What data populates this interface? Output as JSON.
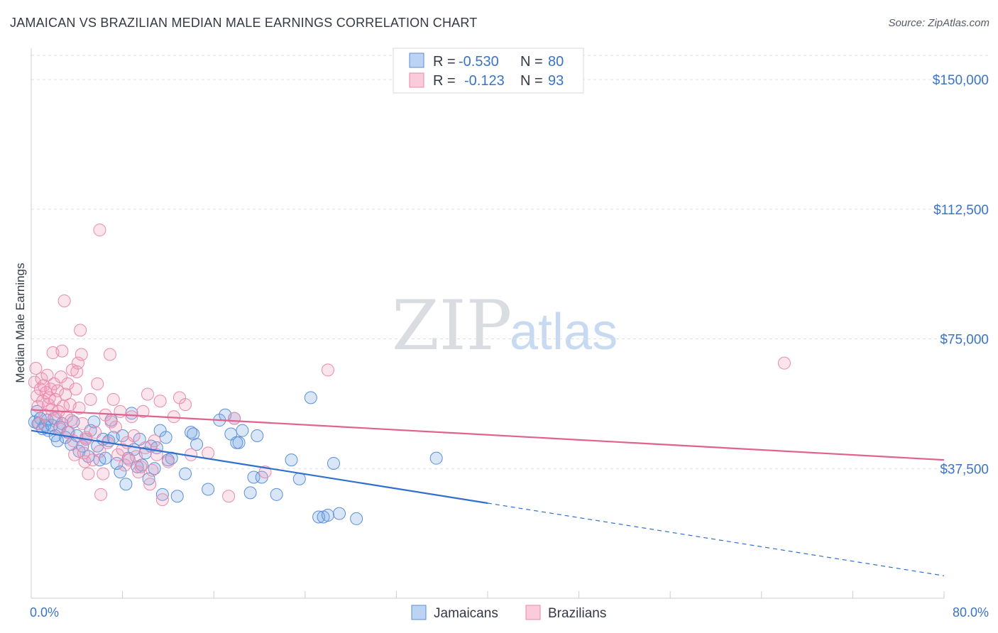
{
  "header": {
    "title": "JAMAICAN VS BRAZILIAN MEDIAN MALE EARNINGS CORRELATION CHART",
    "source": "Source: ZipAtlas.com"
  },
  "watermark": {
    "zip": "ZIP",
    "atlas": "atlas"
  },
  "legend": {
    "r_label": "R =",
    "n_label": "N =",
    "rows": [
      {
        "r": "-0.530",
        "n": "80",
        "color": "#5b8fd6"
      },
      {
        "r": "-0.123",
        "n": "93",
        "color": "#e98aab"
      }
    ]
  },
  "colors": {
    "blue": "#2f6fce",
    "pink": "#e0628f",
    "axis_text": "#3a74c9"
  },
  "chart_data": {
    "type": "scatter",
    "ylabel": "Median Male Earnings",
    "xlim": [
      0,
      80
    ],
    "ylim": [
      0,
      157000
    ],
    "y_ticks": [
      37500,
      75000,
      112500,
      150000
    ],
    "y_tick_labels": [
      "$37,500",
      "$75,000",
      "$112,500",
      "$150,000"
    ],
    "x_tick_labels": [
      "0.0%",
      "80.0%"
    ],
    "grid": "dashed-horizontal",
    "legend_placement": "top-center",
    "series": [
      {
        "name": "Jamaicans",
        "r": -0.53,
        "n": 80,
        "trend": {
          "x0": 0,
          "y0": 48500,
          "x1": 40,
          "y1": 27500,
          "dashed_to_x": 80,
          "dashed_to_y": 6500
        },
        "points": [
          [
            0.3,
            51000
          ],
          [
            0.5,
            54000
          ],
          [
            0.6,
            50500
          ],
          [
            0.8,
            52000
          ],
          [
            1.0,
            49000
          ],
          [
            1.2,
            50000
          ],
          [
            1.4,
            51500
          ],
          [
            1.5,
            48500
          ],
          [
            1.8,
            50000
          ],
          [
            2.0,
            52000
          ],
          [
            2.1,
            47000
          ],
          [
            2.3,
            45500
          ],
          [
            2.5,
            49500
          ],
          [
            2.7,
            50500
          ],
          [
            3.0,
            46500
          ],
          [
            3.2,
            48000
          ],
          [
            3.5,
            44500
          ],
          [
            3.7,
            51000
          ],
          [
            4.0,
            47000
          ],
          [
            4.2,
            42500
          ],
          [
            4.5,
            44000
          ],
          [
            4.8,
            46000
          ],
          [
            5.0,
            41000
          ],
          [
            5.2,
            48500
          ],
          [
            5.5,
            51000
          ],
          [
            5.8,
            44000
          ],
          [
            6.0,
            40000
          ],
          [
            6.3,
            46000
          ],
          [
            6.5,
            40500
          ],
          [
            6.8,
            45500
          ],
          [
            7.0,
            51500
          ],
          [
            7.2,
            46500
          ],
          [
            7.5,
            39000
          ],
          [
            7.8,
            36500
          ],
          [
            8.0,
            47000
          ],
          [
            8.3,
            33000
          ],
          [
            8.5,
            40500
          ],
          [
            8.8,
            53500
          ],
          [
            9.0,
            43000
          ],
          [
            9.3,
            38000
          ],
          [
            9.5,
            46000
          ],
          [
            9.7,
            38500
          ],
          [
            10.0,
            42000
          ],
          [
            10.3,
            34500
          ],
          [
            10.5,
            44000
          ],
          [
            10.8,
            37500
          ],
          [
            11.0,
            43500
          ],
          [
            11.3,
            48500
          ],
          [
            11.5,
            30000
          ],
          [
            11.8,
            46500
          ],
          [
            12.0,
            40000
          ],
          [
            12.3,
            40500
          ],
          [
            12.8,
            29500
          ],
          [
            13.5,
            36000
          ],
          [
            14.0,
            48000
          ],
          [
            14.2,
            47500
          ],
          [
            14.5,
            44500
          ],
          [
            15.5,
            31500
          ],
          [
            16.5,
            51500
          ],
          [
            17.0,
            53000
          ],
          [
            17.5,
            47500
          ],
          [
            17.8,
            52000
          ],
          [
            18.2,
            45000
          ],
          [
            18.5,
            48500
          ],
          [
            19.2,
            30500
          ],
          [
            19.5,
            35000
          ],
          [
            19.8,
            47000
          ],
          [
            20.2,
            35000
          ],
          [
            21.5,
            30000
          ],
          [
            22.8,
            40000
          ],
          [
            23.5,
            34500
          ],
          [
            24.5,
            58000
          ],
          [
            25.2,
            23500
          ],
          [
            25.6,
            23500
          ],
          [
            26.0,
            24000
          ],
          [
            26.5,
            39000
          ],
          [
            27.0,
            24500
          ],
          [
            28.5,
            23000
          ],
          [
            35.5,
            40500
          ],
          [
            18.0,
            45000
          ]
        ]
      },
      {
        "name": "Brazilians",
        "r": -0.123,
        "n": 93,
        "trend": {
          "x0": 0,
          "y0": 54500,
          "x1": 80,
          "y1": 40000
        },
        "points": [
          [
            0.3,
            62500
          ],
          [
            0.4,
            66500
          ],
          [
            0.5,
            58500
          ],
          [
            0.6,
            55500
          ],
          [
            0.7,
            50500
          ],
          [
            0.8,
            60500
          ],
          [
            0.9,
            63500
          ],
          [
            1.0,
            57000
          ],
          [
            1.1,
            61500
          ],
          [
            1.2,
            53000
          ],
          [
            1.3,
            59500
          ],
          [
            1.4,
            64500
          ],
          [
            1.5,
            56000
          ],
          [
            1.6,
            58000
          ],
          [
            1.7,
            60500
          ],
          [
            1.8,
            54500
          ],
          [
            1.9,
            71000
          ],
          [
            2.0,
            62000
          ],
          [
            2.1,
            57500
          ],
          [
            2.2,
            52000
          ],
          [
            2.3,
            60000
          ],
          [
            2.4,
            54000
          ],
          [
            2.5,
            49000
          ],
          [
            2.6,
            64000
          ],
          [
            2.7,
            71500
          ],
          [
            2.8,
            55500
          ],
          [
            2.9,
            86000
          ],
          [
            3.0,
            59000
          ],
          [
            3.1,
            52500
          ],
          [
            3.2,
            62000
          ],
          [
            3.3,
            48000
          ],
          [
            3.4,
            56000
          ],
          [
            3.5,
            51500
          ],
          [
            3.6,
            66000
          ],
          [
            3.7,
            45500
          ],
          [
            3.8,
            41500
          ],
          [
            3.9,
            60500
          ],
          [
            4.0,
            65500
          ],
          [
            4.1,
            68000
          ],
          [
            4.2,
            55000
          ],
          [
            4.3,
            77500
          ],
          [
            4.4,
            70500
          ],
          [
            4.5,
            50500
          ],
          [
            4.6,
            42000
          ],
          [
            4.7,
            39500
          ],
          [
            4.8,
            46500
          ],
          [
            5.0,
            36000
          ],
          [
            5.2,
            57500
          ],
          [
            5.4,
            40000
          ],
          [
            5.6,
            48000
          ],
          [
            5.8,
            62000
          ],
          [
            6.0,
            42500
          ],
          [
            6.1,
            30000
          ],
          [
            6.3,
            36000
          ],
          [
            6.5,
            53000
          ],
          [
            6.7,
            45000
          ],
          [
            6.9,
            70500
          ],
          [
            7.0,
            51000
          ],
          [
            7.2,
            57500
          ],
          [
            7.4,
            49500
          ],
          [
            7.6,
            41500
          ],
          [
            7.8,
            54000
          ],
          [
            8.0,
            43000
          ],
          [
            8.2,
            38500
          ],
          [
            8.4,
            45000
          ],
          [
            8.6,
            40000
          ],
          [
            8.8,
            52500
          ],
          [
            9.0,
            47000
          ],
          [
            9.2,
            41000
          ],
          [
            9.4,
            36500
          ],
          [
            9.6,
            38000
          ],
          [
            9.8,
            54000
          ],
          [
            10.0,
            43500
          ],
          [
            10.2,
            59000
          ],
          [
            10.4,
            33000
          ],
          [
            10.6,
            37000
          ],
          [
            10.8,
            45500
          ],
          [
            11.0,
            41500
          ],
          [
            11.3,
            57000
          ],
          [
            11.5,
            28500
          ],
          [
            12.0,
            39500
          ],
          [
            12.5,
            52500
          ],
          [
            13.0,
            58000
          ],
          [
            13.5,
            56000
          ],
          [
            14.0,
            41500
          ],
          [
            15.5,
            42000
          ],
          [
            17.3,
            29500
          ],
          [
            17.8,
            52000
          ],
          [
            20.5,
            36500
          ],
          [
            26.0,
            66000
          ],
          [
            66.0,
            68000
          ],
          [
            6.0,
            106500
          ],
          [
            4.8,
            46000
          ]
        ]
      }
    ]
  }
}
